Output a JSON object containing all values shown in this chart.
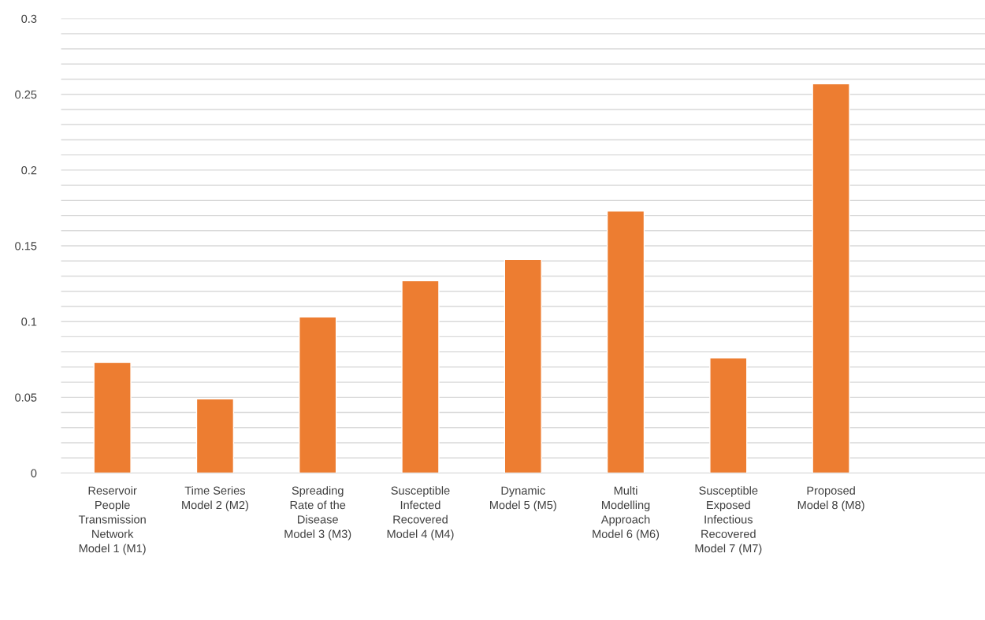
{
  "chart_data": {
    "type": "bar",
    "categories": [
      "Reservoir People Transmission Network Model 1 (M1)",
      "Time Series Model 2 (M2)",
      "Spreading Rate of the Disease Model 3 (M3)",
      "Susceptible Infected Recovered Model 4 (M4)",
      "Dynamic Model 5 (M5)",
      "Multi Modelling Approach Model 6 (M6)",
      "Susceptible Exposed Infectious Recovered Model 7 (M7)",
      "Proposed Model 8 (M8)",
      null
    ],
    "values": [
      0.073,
      0.049,
      0.103,
      0.127,
      0.141,
      0.173,
      0.076,
      0.257,
      null
    ],
    "color": "#ed7d31",
    "ylim": [
      0,
      0.3
    ],
    "yticks": [
      0,
      {
        "value": 0.01,
        "label": null
      },
      {
        "value": 0.02,
        "label": null
      },
      {
        "value": 0.03,
        "label": null
      },
      {
        "value": 0.04,
        "label": null
      },
      0.05,
      {
        "value": 0.06,
        "label": null
      },
      {
        "value": 0.07,
        "label": null
      },
      {
        "value": 0.08,
        "label": null
      },
      {
        "value": 0.09,
        "label": null
      },
      0.1,
      {
        "value": 0.11,
        "label": null
      },
      {
        "value": 0.12,
        "label": null
      },
      {
        "value": 0.13,
        "label": null
      },
      {
        "value": 0.14,
        "label": null
      },
      0.15,
      {
        "value": 0.16,
        "label": null
      },
      {
        "value": 0.17,
        "label": null
      },
      {
        "value": 0.18,
        "label": null
      },
      {
        "value": 0.19,
        "label": null
      },
      0.2,
      {
        "value": 0.21,
        "label": null
      },
      {
        "value": 0.22,
        "label": null
      },
      {
        "value": 0.23,
        "label": null
      },
      {
        "value": 0.24,
        "label": null
      },
      0.25,
      {
        "value": 0.26,
        "label": null
      },
      {
        "value": 0.27,
        "label": null
      },
      {
        "value": 0.28,
        "label": null
      },
      {
        "value": 0.29,
        "label": null
      },
      0.3
    ],
    "grid": "y"
  }
}
